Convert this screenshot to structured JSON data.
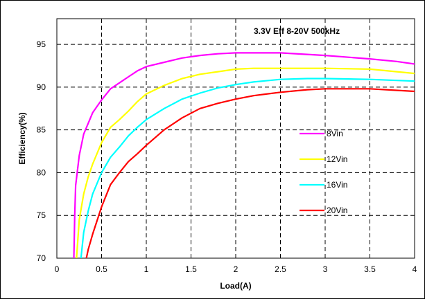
{
  "chart_data": {
    "type": "line",
    "title": "3.3V  Eff 8-20V  500kHz",
    "xlabel": "Load(A)",
    "ylabel": "Efficiency(%)",
    "xlim": [
      0,
      4
    ],
    "ylim": [
      70,
      98
    ],
    "x_ticks": [
      "0",
      "0.5",
      "1",
      "1.5",
      "2",
      "2.5",
      "3",
      "3.5",
      "4"
    ],
    "y_ticks": [
      "70",
      "75",
      "80",
      "85",
      "90",
      "95"
    ],
    "grid": true,
    "legend_position": "right-center",
    "series": [
      {
        "name": "8Vin",
        "color": "#ff00ff",
        "x": [
          0.19,
          0.2,
          0.21,
          0.25,
          0.3,
          0.4,
          0.5,
          0.6,
          0.7,
          0.8,
          0.9,
          1.0,
          1.2,
          1.4,
          1.6,
          1.8,
          2.0,
          2.2,
          2.5,
          3.0,
          3.5,
          3.8,
          4.0
        ],
        "y": [
          70,
          75,
          78.5,
          82,
          84.5,
          87,
          88.5,
          89.8,
          90.5,
          91.2,
          91.9,
          92.4,
          92.9,
          93.4,
          93.7,
          93.9,
          94.0,
          94.0,
          94.0,
          93.7,
          93.3,
          93.0,
          92.7
        ]
      },
      {
        "name": "12Vin",
        "color": "#ffff00",
        "x": [
          0.22,
          0.25,
          0.3,
          0.35,
          0.4,
          0.5,
          0.6,
          0.7,
          0.8,
          0.9,
          1.0,
          1.2,
          1.4,
          1.6,
          1.8,
          2.0,
          2.2,
          2.5,
          3.0,
          3.5,
          4.0
        ],
        "y": [
          70,
          74.5,
          77.5,
          79.5,
          81,
          83.5,
          85.3,
          86.2,
          87.2,
          88.3,
          89.2,
          90.2,
          91.0,
          91.5,
          91.8,
          92.1,
          92.2,
          92.2,
          92.2,
          92.1,
          91.6
        ]
      },
      {
        "name": "16Vin",
        "color": "#00ffff",
        "x": [
          0.27,
          0.3,
          0.35,
          0.4,
          0.5,
          0.6,
          0.7,
          0.8,
          0.9,
          1.0,
          1.2,
          1.4,
          1.6,
          1.8,
          2.0,
          2.2,
          2.5,
          2.8,
          3.0,
          3.5,
          4.0
        ],
        "y": [
          70,
          73,
          75.5,
          77.5,
          80,
          81.8,
          83.0,
          84.3,
          85.3,
          86.2,
          87.5,
          88.6,
          89.3,
          89.9,
          90.3,
          90.6,
          90.9,
          91.0,
          91.0,
          90.9,
          90.7
        ]
      },
      {
        "name": "20Vin",
        "color": "#ff0000",
        "x": [
          0.33,
          0.35,
          0.4,
          0.5,
          0.6,
          0.7,
          0.8,
          0.9,
          1.0,
          1.2,
          1.4,
          1.6,
          1.8,
          2.0,
          2.2,
          2.5,
          2.8,
          3.0,
          3.5,
          4.0
        ],
        "y": [
          70,
          71,
          72.8,
          76,
          78.6,
          80.0,
          81.3,
          82.2,
          83.2,
          85.0,
          86.4,
          87.5,
          88.1,
          88.6,
          89.0,
          89.4,
          89.7,
          89.8,
          89.8,
          89.5
        ]
      }
    ]
  }
}
